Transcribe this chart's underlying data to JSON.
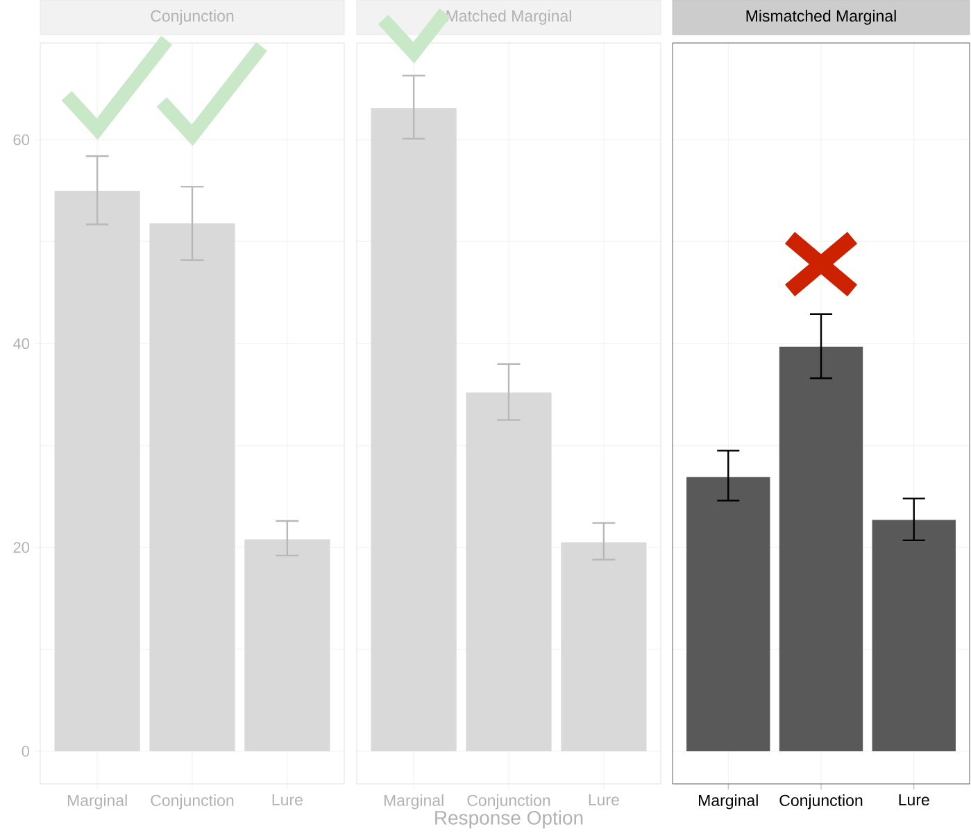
{
  "chart_data": [
    {
      "type": "bar",
      "title": "Conjunction",
      "categories": [
        "Marginal",
        "Conjunction",
        "Lure"
      ],
      "values": [
        55.0,
        51.8,
        20.8
      ],
      "errors": [
        [
          51.7,
          58.4
        ],
        [
          48.2,
          55.4
        ],
        [
          19.2,
          22.6
        ]
      ],
      "color": "#d9d9d9",
      "ylim": [
        -3.2,
        69.5
      ],
      "yticks": [
        0,
        20,
        40,
        60
      ],
      "grid": true
    },
    {
      "type": "bar",
      "title": "Matched Marginal",
      "xlabel": "Response Option",
      "categories": [
        "Marginal",
        "Conjunction",
        "Lure"
      ],
      "values": [
        63.1,
        35.2,
        20.5
      ],
      "errors": [
        [
          60.1,
          66.3
        ],
        [
          32.5,
          38.0
        ],
        [
          18.8,
          22.4
        ]
      ],
      "color": "#d9d9d9",
      "ylim": [
        -3.2,
        69.5
      ],
      "yticks": [
        0,
        20,
        40,
        60
      ],
      "grid": true,
      "tick_labels": "x"
    },
    {
      "type": "bar",
      "title": "Mismatched Marginal",
      "categories": [
        "Marginal",
        "Conjunction",
        "Lure"
      ],
      "values": [
        26.9,
        39.7,
        22.7
      ],
      "errors": [
        [
          24.6,
          29.5
        ],
        [
          36.6,
          42.9
        ],
        [
          20.7,
          24.8
        ]
      ],
      "color": "#595959",
      "ylim": [
        -3.2,
        69.5
      ],
      "yticks": [
        0,
        20,
        40,
        60
      ],
      "grid": true,
      "tick_labels": "x"
    }
  ]
}
